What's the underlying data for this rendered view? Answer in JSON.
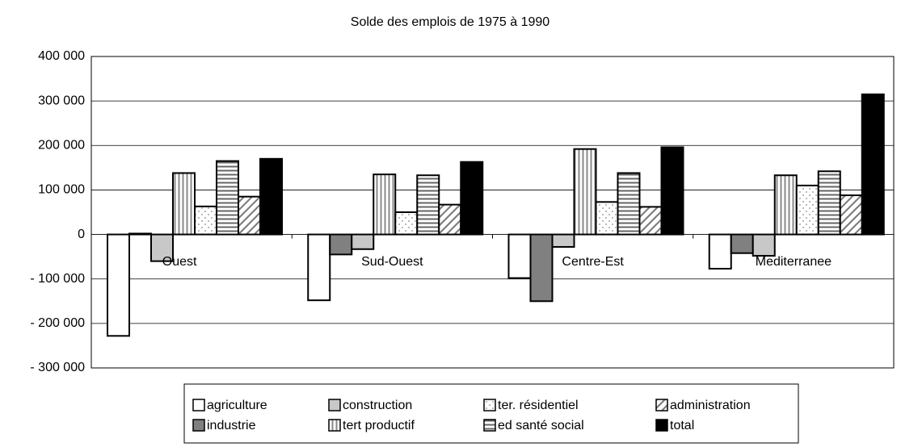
{
  "chart_data": {
    "type": "bar",
    "title": "Solde des emplois de 1975 à 1990",
    "categories": [
      "Ouest",
      "Sud-Ouest",
      "Centre-Est",
      "Mediterranee"
    ],
    "series": [
      {
        "name": "agriculture",
        "color": "#ffffff",
        "pattern": "solid",
        "values": [
          -228000,
          -148000,
          -98000,
          -77000
        ]
      },
      {
        "name": "industrie",
        "color": "#808080",
        "pattern": "solid",
        "values": [
          2000,
          -45000,
          -150000,
          -42000
        ]
      },
      {
        "name": "construction",
        "color": "#c8c8c8",
        "pattern": "solid",
        "values": [
          -60000,
          -33000,
          -28000,
          -48000
        ]
      },
      {
        "name": "tert productif",
        "color": "#ffffff",
        "pattern": "vertical",
        "values": [
          138000,
          135000,
          192000,
          133000
        ]
      },
      {
        "name": "ter. résidentiel",
        "color": "#ffffff",
        "pattern": "dots",
        "values": [
          63000,
          50000,
          73000,
          110000
        ]
      },
      {
        "name": "ed santé social",
        "color": "#ffffff",
        "pattern": "horizontal",
        "values": [
          165000,
          133000,
          138000,
          142000
        ]
      },
      {
        "name": "administration",
        "color": "#ffffff",
        "pattern": "diagonal",
        "values": [
          85000,
          67000,
          62000,
          88000
        ]
      },
      {
        "name": "total",
        "color": "#000000",
        "pattern": "solid",
        "values": [
          170000,
          163000,
          196000,
          315000
        ]
      }
    ],
    "ylim": [
      -300000,
      400000
    ],
    "yticks": [
      {
        "value": -300000,
        "label": "- 300 000"
      },
      {
        "value": -200000,
        "label": "- 200 000"
      },
      {
        "value": -100000,
        "label": "- 100 000"
      },
      0,
      {
        "value": 100000,
        "label": "100 000"
      },
      {
        "value": 200000,
        "label": "200 000"
      },
      {
        "value": 300000,
        "label": "300 000"
      },
      {
        "value": 400000,
        "label": "400 000"
      }
    ],
    "grid": true
  }
}
